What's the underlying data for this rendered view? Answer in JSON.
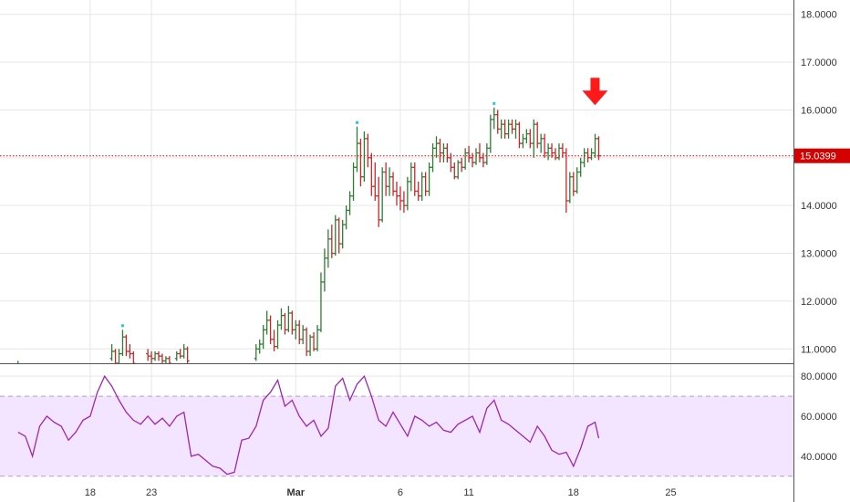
{
  "colors": {
    "up": "#2e7d32",
    "down": "#c62828",
    "grid": "#e6e6e6",
    "current_line": "#d50000",
    "label_bg": "#d50000",
    "rsi_line": "#9c27b0",
    "rsi_band": "#f3e5ff",
    "rsi_band_border": "#b39ddb",
    "arrow": "#ff1a1a",
    "marker": "#26c6da"
  },
  "chart_data": [
    {
      "type": "ohlc",
      "pane": "price",
      "ylim": [
        10.7,
        18.3
      ],
      "y_ticks": [
        "18.0000",
        "17.0000",
        "16.0000",
        "15.0000",
        "14.0000",
        "13.0000",
        "12.0000",
        "11.0000"
      ],
      "y_tick_values": [
        18,
        17,
        16,
        15,
        14,
        13,
        12,
        11
      ],
      "x_ticks": [
        "18",
        "23",
        "Mar",
        "6",
        "11",
        "18",
        "25"
      ],
      "x_tick_values": [
        20,
        37,
        77,
        106,
        125,
        154,
        181
      ],
      "x_range": [
        -5,
        215
      ],
      "current_price": 15.0399,
      "current_price_label": "15.0399",
      "bars": [
        [
          0,
          10.6,
          10.75,
          10.5,
          10.6
        ],
        [
          1,
          10.6,
          10.7,
          10.5,
          10.65
        ],
        [
          2,
          10.65,
          10.7,
          10.5,
          10.55
        ],
        [
          26,
          10.8,
          11.1,
          10.75,
          10.95
        ],
        [
          27,
          10.95,
          11.0,
          10.6,
          10.7
        ],
        [
          28,
          10.7,
          11.0,
          10.65,
          10.9
        ],
        [
          29,
          10.9,
          11.4,
          10.85,
          11.25
        ],
        [
          30,
          11.25,
          11.3,
          10.85,
          10.95
        ],
        [
          31,
          10.95,
          11.1,
          10.8,
          10.9
        ],
        [
          32,
          10.9,
          10.95,
          10.6,
          10.7
        ],
        [
          36,
          10.9,
          11.0,
          10.75,
          10.85
        ],
        [
          37,
          10.85,
          10.95,
          10.7,
          10.8
        ],
        [
          38,
          10.8,
          10.95,
          10.75,
          10.9
        ],
        [
          39,
          10.9,
          10.95,
          10.75,
          10.85
        ],
        [
          40,
          10.85,
          10.9,
          10.7,
          10.75
        ],
        [
          41,
          10.75,
          10.85,
          10.65,
          10.8
        ],
        [
          42,
          10.8,
          10.85,
          10.65,
          10.7
        ],
        [
          44,
          10.8,
          10.95,
          10.75,
          10.9
        ],
        [
          45,
          10.9,
          11.0,
          10.8,
          10.85
        ],
        [
          46,
          10.85,
          11.1,
          10.8,
          11.0
        ],
        [
          47,
          11.0,
          11.05,
          10.7,
          10.75
        ],
        [
          66,
          10.8,
          11.1,
          10.75,
          11.0
        ],
        [
          67,
          11.0,
          11.2,
          10.9,
          11.1
        ],
        [
          68,
          11.1,
          11.5,
          11.0,
          11.4
        ],
        [
          69,
          11.4,
          11.8,
          11.3,
          11.6
        ],
        [
          70,
          11.6,
          11.7,
          11.1,
          11.2
        ],
        [
          71,
          11.2,
          11.4,
          10.95,
          11.05
        ],
        [
          72,
          11.05,
          11.6,
          11.0,
          11.5
        ],
        [
          73,
          11.5,
          11.85,
          11.4,
          11.7
        ],
        [
          74,
          11.7,
          11.75,
          11.3,
          11.4
        ],
        [
          75,
          11.4,
          11.9,
          11.35,
          11.75
        ],
        [
          76,
          11.75,
          11.8,
          11.3,
          11.4
        ],
        [
          77,
          11.4,
          11.6,
          11.2,
          11.5
        ],
        [
          78,
          11.5,
          11.6,
          11.1,
          11.2
        ],
        [
          79,
          11.2,
          11.5,
          11.1,
          11.4
        ],
        [
          80,
          11.4,
          11.45,
          10.85,
          10.95
        ],
        [
          81,
          10.95,
          11.3,
          10.85,
          11.25
        ],
        [
          82,
          11.25,
          11.35,
          10.95,
          11.0
        ],
        [
          83,
          11.0,
          11.5,
          10.95,
          11.4
        ],
        [
          84,
          11.4,
          12.6,
          11.35,
          12.4
        ],
        [
          85,
          12.4,
          13.1,
          12.2,
          12.9
        ],
        [
          86,
          12.9,
          13.5,
          12.7,
          13.3
        ],
        [
          87,
          13.3,
          13.6,
          12.9,
          13.0
        ],
        [
          88,
          13.0,
          13.8,
          12.95,
          13.7
        ],
        [
          89,
          13.7,
          13.75,
          13.0,
          13.2
        ],
        [
          90,
          13.2,
          13.7,
          13.1,
          13.6
        ],
        [
          91,
          13.6,
          14.0,
          13.5,
          13.9
        ],
        [
          92,
          13.9,
          14.3,
          13.8,
          14.2
        ],
        [
          93,
          14.2,
          14.9,
          14.1,
          14.8
        ],
        [
          94,
          14.8,
          15.65,
          14.7,
          15.3
        ],
        [
          95,
          15.3,
          15.4,
          14.4,
          14.6
        ],
        [
          96,
          14.6,
          15.55,
          14.5,
          15.4
        ],
        [
          97,
          15.4,
          15.5,
          14.8,
          15.0
        ],
        [
          98,
          15.0,
          15.1,
          14.2,
          14.4
        ],
        [
          99,
          14.4,
          14.9,
          14.1,
          14.2
        ],
        [
          100,
          14.2,
          14.6,
          13.55,
          13.7
        ],
        [
          101,
          13.7,
          14.8,
          13.65,
          14.7
        ],
        [
          102,
          14.7,
          14.9,
          14.2,
          14.4
        ],
        [
          103,
          14.4,
          14.8,
          14.2,
          14.6
        ],
        [
          104,
          14.6,
          14.7,
          14.2,
          14.3
        ],
        [
          105,
          14.3,
          14.5,
          14.0,
          14.2
        ],
        [
          106,
          14.2,
          14.4,
          13.9,
          14.1
        ],
        [
          107,
          14.1,
          14.3,
          13.85,
          14.0
        ],
        [
          108,
          14.0,
          14.6,
          13.9,
          14.5
        ],
        [
          109,
          14.5,
          14.9,
          14.3,
          14.8
        ],
        [
          110,
          14.8,
          14.9,
          14.2,
          14.3
        ],
        [
          111,
          14.3,
          14.5,
          14.1,
          14.2
        ],
        [
          112,
          14.2,
          14.7,
          14.1,
          14.6
        ],
        [
          113,
          14.6,
          14.7,
          14.2,
          14.3
        ],
        [
          114,
          14.3,
          14.9,
          14.2,
          14.8
        ],
        [
          115,
          14.8,
          15.3,
          14.7,
          15.2
        ],
        [
          116,
          15.2,
          15.45,
          15.0,
          15.3
        ],
        [
          117,
          15.3,
          15.4,
          14.9,
          15.1
        ],
        [
          118,
          15.1,
          15.3,
          14.9,
          15.2
        ],
        [
          119,
          15.2,
          15.3,
          14.9,
          15.0
        ],
        [
          120,
          15.0,
          15.1,
          14.7,
          14.8
        ],
        [
          121,
          14.8,
          14.9,
          14.55,
          14.6
        ],
        [
          122,
          14.6,
          14.95,
          14.55,
          14.9
        ],
        [
          123,
          14.9,
          15.0,
          14.7,
          14.8
        ],
        [
          124,
          14.8,
          15.2,
          14.75,
          15.1
        ],
        [
          125,
          15.1,
          15.25,
          14.9,
          15.0
        ],
        [
          126,
          15.0,
          15.1,
          14.8,
          14.9
        ],
        [
          127,
          14.9,
          15.2,
          14.85,
          15.1
        ],
        [
          128,
          15.1,
          15.3,
          14.9,
          15.0
        ],
        [
          129,
          15.0,
          15.1,
          14.8,
          14.9
        ],
        [
          130,
          14.9,
          15.3,
          14.85,
          15.2
        ],
        [
          131,
          15.2,
          15.9,
          15.1,
          15.8
        ],
        [
          132,
          15.8,
          16.05,
          15.6,
          15.9
        ],
        [
          133,
          15.9,
          16.0,
          15.5,
          15.6
        ],
        [
          134,
          15.6,
          15.8,
          15.4,
          15.7
        ],
        [
          135,
          15.7,
          15.8,
          15.4,
          15.5
        ],
        [
          136,
          15.5,
          15.8,
          15.4,
          15.7
        ],
        [
          137,
          15.7,
          15.8,
          15.5,
          15.6
        ],
        [
          138,
          15.6,
          15.8,
          15.4,
          15.7
        ],
        [
          139,
          15.7,
          15.75,
          15.2,
          15.3
        ],
        [
          140,
          15.3,
          15.5,
          15.2,
          15.4
        ],
        [
          141,
          15.4,
          15.6,
          15.3,
          15.5
        ],
        [
          142,
          15.5,
          15.6,
          15.2,
          15.3
        ],
        [
          143,
          15.3,
          15.8,
          15.0,
          15.7
        ],
        [
          144,
          15.7,
          15.75,
          15.2,
          15.3
        ],
        [
          145,
          15.3,
          15.5,
          15.1,
          15.4
        ],
        [
          146,
          15.4,
          15.5,
          15.0,
          15.1
        ],
        [
          147,
          15.1,
          15.3,
          14.95,
          15.2
        ],
        [
          148,
          15.2,
          15.3,
          15.0,
          15.1
        ],
        [
          149,
          15.1,
          15.2,
          14.95,
          15.0
        ],
        [
          150,
          15.0,
          15.3,
          14.95,
          15.2
        ],
        [
          151,
          15.2,
          15.3,
          15.0,
          15.1
        ],
        [
          152,
          15.1,
          15.2,
          13.85,
          14.1
        ],
        [
          153,
          14.1,
          14.7,
          14.05,
          14.6
        ],
        [
          154,
          14.6,
          14.7,
          14.2,
          14.3
        ],
        [
          155,
          14.3,
          14.8,
          14.25,
          14.7
        ],
        [
          156,
          14.7,
          15.0,
          14.6,
          14.9
        ],
        [
          157,
          14.9,
          15.2,
          14.8,
          15.1
        ],
        [
          158,
          15.1,
          15.2,
          14.9,
          15.0
        ],
        [
          159,
          15.0,
          15.2,
          14.95,
          15.1
        ],
        [
          160,
          15.1,
          15.5,
          15.0,
          15.4
        ],
        [
          161,
          15.4,
          15.45,
          14.95,
          15.04
        ]
      ],
      "markers": [
        {
          "x": 29,
          "price": 11.4
        },
        {
          "x": 94,
          "price": 15.65
        },
        {
          "x": 132,
          "price": 16.05
        }
      ],
      "annotation": {
        "type": "arrow-down",
        "x": 161,
        "price": 16.1
      }
    },
    {
      "type": "line",
      "pane": "rsi",
      "ylim": [
        29,
        86
      ],
      "y_ticks": [
        "80.0000",
        "60.0000",
        "40.0000"
      ],
      "y_tick_values": [
        80,
        60,
        40
      ],
      "band": [
        30,
        70
      ],
      "series": [
        {
          "x": [
            0,
            2,
            4,
            6,
            8,
            10,
            12,
            14,
            16,
            18,
            20,
            22,
            24,
            26,
            28,
            30,
            32,
            34,
            36,
            38,
            40,
            42,
            44,
            46,
            48,
            50,
            52,
            54,
            56,
            58,
            60,
            62,
            64,
            66,
            68,
            70,
            72,
            74,
            76,
            78,
            80,
            82,
            84,
            86,
            88,
            90,
            92,
            94,
            96,
            98,
            100,
            102,
            104,
            106,
            108,
            110,
            112,
            114,
            116,
            118,
            120,
            122,
            124,
            126,
            128,
            130,
            132,
            134,
            136,
            138,
            140,
            142,
            144,
            146,
            148,
            150,
            152,
            154,
            156,
            158,
            160,
            161
          ],
          "y": [
            52,
            50,
            40,
            55,
            60,
            57,
            55,
            48,
            52,
            58,
            60,
            72,
            80,
            75,
            68,
            62,
            58,
            56,
            60,
            56,
            59,
            55,
            60,
            62,
            40,
            41,
            38,
            35,
            34,
            31,
            32,
            48,
            49,
            55,
            68,
            72,
            78,
            65,
            68,
            60,
            55,
            58,
            50,
            54,
            75,
            79,
            68,
            76,
            80,
            70,
            58,
            55,
            62,
            56,
            50,
            60,
            58,
            55,
            57,
            53,
            52,
            56,
            58,
            60,
            52,
            64,
            68,
            58,
            56,
            53,
            50,
            47,
            55,
            50,
            43,
            41,
            42,
            35,
            44,
            55,
            57,
            49
          ]
        }
      ]
    }
  ]
}
